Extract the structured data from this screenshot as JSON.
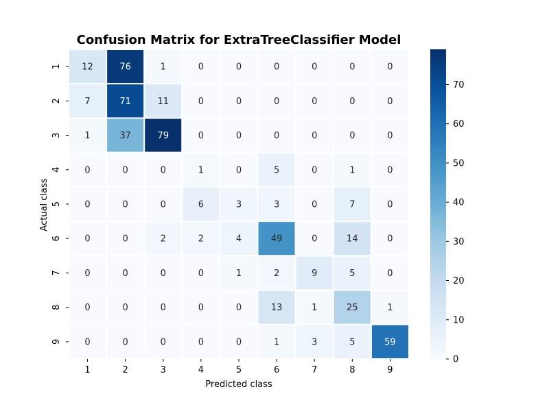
{
  "chart_data": {
    "type": "heatmap",
    "title": "Confusion Matrix for ExtraTreeClassifier Model",
    "xlabel": "Predicted class",
    "ylabel": "Actual class",
    "x_categories": [
      "1",
      "2",
      "3",
      "4",
      "5",
      "6",
      "7",
      "8",
      "9"
    ],
    "y_categories": [
      "1",
      "2",
      "3",
      "4",
      "5",
      "6",
      "7",
      "8",
      "9"
    ],
    "values": [
      [
        12,
        76,
        1,
        0,
        0,
        0,
        0,
        0,
        0
      ],
      [
        7,
        71,
        11,
        0,
        0,
        0,
        0,
        0,
        0
      ],
      [
        1,
        37,
        79,
        0,
        0,
        0,
        0,
        0,
        0
      ],
      [
        0,
        0,
        0,
        1,
        0,
        5,
        0,
        1,
        0
      ],
      [
        0,
        0,
        0,
        6,
        3,
        3,
        0,
        7,
        0
      ],
      [
        0,
        0,
        2,
        2,
        4,
        49,
        0,
        14,
        0
      ],
      [
        0,
        0,
        0,
        0,
        1,
        2,
        9,
        5,
        0
      ],
      [
        0,
        0,
        0,
        0,
        0,
        13,
        1,
        25,
        1
      ],
      [
        0,
        0,
        0,
        0,
        0,
        1,
        3,
        5,
        59
      ]
    ],
    "colorbar": {
      "min": 0,
      "max": 79,
      "ticks": [
        0,
        10,
        20,
        30,
        40,
        50,
        60,
        70
      ],
      "colormap": "Blues"
    },
    "grid": false,
    "cell_separator_color": "#ffffff"
  }
}
